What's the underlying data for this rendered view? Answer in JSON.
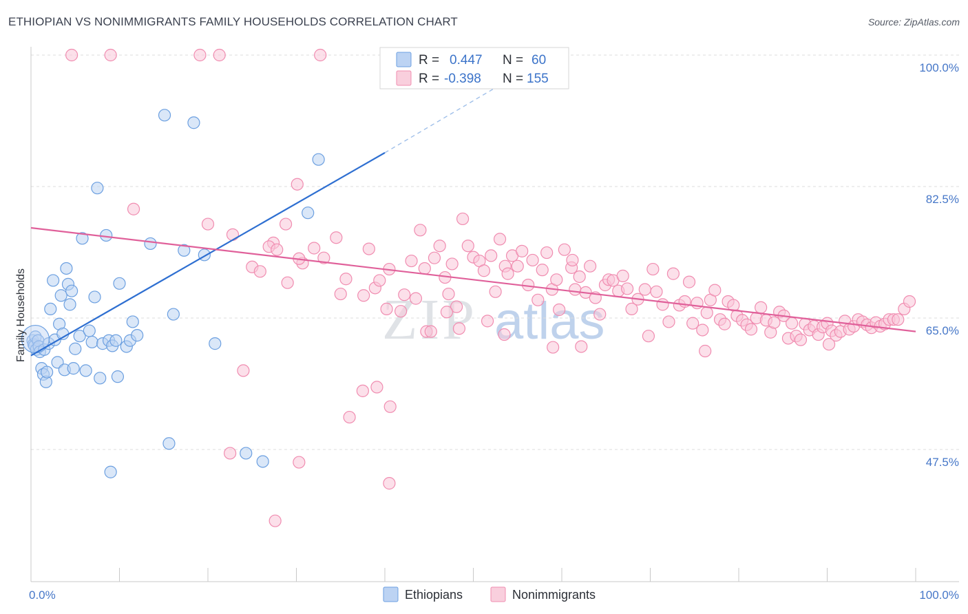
{
  "title": "ETHIOPIAN VS NONIMMIGRANTS FAMILY HOUSEHOLDS CORRELATION CHART",
  "source": "Source: ZipAtlas.com",
  "watermark": {
    "zip": "ZIP",
    "atlas": "atlas"
  },
  "colors": {
    "blue": "#6b9fe0",
    "blue_line": "#2e6fd1",
    "pink": "#f08cb0",
    "pink_line": "#e0609a",
    "tick_label": "#4677c8",
    "grid": "#dddddd"
  },
  "legend": {
    "rows": [
      {
        "r_label": "R =",
        "r_value": "0.447",
        "n_label": "N =",
        "n_value": "60"
      },
      {
        "r_label": "R =",
        "r_value": "-0.398",
        "n_label": "N =",
        "n_value": "155"
      }
    ]
  },
  "bottom_legend": [
    "Ethiopians",
    "Nonimmigrants"
  ],
  "chart_data": {
    "type": "scatter",
    "title": "ETHIOPIAN VS NONIMMIGRANTS FAMILY HOUSEHOLDS CORRELATION CHART",
    "xlabel": "",
    "ylabel": "Family Households",
    "xlim": [
      0,
      100
    ],
    "ylim": [
      29.5,
      101.5
    ],
    "x_tick_labels": [
      "0.0%",
      "100.0%"
    ],
    "y_ticks": [
      47.5,
      65.0,
      82.5,
      100.0
    ],
    "y_tick_labels": [
      "47.5%",
      "65.0%",
      "82.5%",
      "100.0%"
    ],
    "grid": true,
    "series": [
      {
        "name": "Ethiopians",
        "R": 0.447,
        "N": 60,
        "trend": {
          "x0": 0,
          "y0": 60.0,
          "x1": 40,
          "y1": 87.0,
          "dashed_to_x": 53,
          "dashed_to_y": 96.0
        },
        "points": [
          [
            0.2,
            62.0
          ],
          [
            0.3,
            61.5
          ],
          [
            0.4,
            61.3
          ],
          [
            0.5,
            62.5
          ],
          [
            0.6,
            60.8
          ],
          [
            0.8,
            62.0
          ],
          [
            0.9,
            61.2
          ],
          [
            1.0,
            60.5
          ],
          [
            1.2,
            58.3
          ],
          [
            1.4,
            57.5
          ],
          [
            1.5,
            60.8
          ],
          [
            1.7,
            56.5
          ],
          [
            1.8,
            57.8
          ],
          [
            2.0,
            61.6
          ],
          [
            2.2,
            66.2
          ],
          [
            2.5,
            70.0
          ],
          [
            2.7,
            62.1
          ],
          [
            3.0,
            59.1
          ],
          [
            3.2,
            64.2
          ],
          [
            3.4,
            68.0
          ],
          [
            3.6,
            62.9
          ],
          [
            3.8,
            58.1
          ],
          [
            4.0,
            71.6
          ],
          [
            4.2,
            69.5
          ],
          [
            4.4,
            66.8
          ],
          [
            4.6,
            68.6
          ],
          [
            4.8,
            58.3
          ],
          [
            5.0,
            60.9
          ],
          [
            5.5,
            62.6
          ],
          [
            5.8,
            75.6
          ],
          [
            6.2,
            58.0
          ],
          [
            6.6,
            63.3
          ],
          [
            6.9,
            61.8
          ],
          [
            7.2,
            67.8
          ],
          [
            7.5,
            82.3
          ],
          [
            7.8,
            57.0
          ],
          [
            8.1,
            61.6
          ],
          [
            8.5,
            76.0
          ],
          [
            8.8,
            62.0
          ],
          [
            9.2,
            61.3
          ],
          [
            9.6,
            62.0
          ],
          [
            9.8,
            57.2
          ],
          [
            10.0,
            69.6
          ],
          [
            10.8,
            61.2
          ],
          [
            11.2,
            62.0
          ],
          [
            11.5,
            64.5
          ],
          [
            12.0,
            62.7
          ],
          [
            13.5,
            74.9
          ],
          [
            15.1,
            92.0
          ],
          [
            15.6,
            48.3
          ],
          [
            16.1,
            65.5
          ],
          [
            17.3,
            74.0
          ],
          [
            18.4,
            91.0
          ],
          [
            19.6,
            73.4
          ],
          [
            20.8,
            61.6
          ],
          [
            24.3,
            47.0
          ],
          [
            26.2,
            45.9
          ],
          [
            31.3,
            79.0
          ],
          [
            32.5,
            86.1
          ],
          [
            9.0,
            44.5
          ]
        ]
      },
      {
        "name": "Nonimmigrants",
        "R": -0.398,
        "N": 155,
        "trend": {
          "x0": 0,
          "y0": 77.0,
          "x1": 100,
          "y1": 63.2
        },
        "points": [
          [
            4.6,
            100.0
          ],
          [
            9.0,
            100.0
          ],
          [
            19.1,
            100.0
          ],
          [
            21.3,
            100.0
          ],
          [
            32.7,
            100.0
          ],
          [
            11.6,
            79.5
          ],
          [
            30.1,
            82.8
          ],
          [
            28.8,
            77.5
          ],
          [
            20.0,
            77.5
          ],
          [
            22.8,
            76.1
          ],
          [
            27.4,
            75.0
          ],
          [
            26.9,
            74.5
          ],
          [
            27.8,
            74.1
          ],
          [
            29.0,
            69.7
          ],
          [
            30.7,
            72.3
          ],
          [
            25.0,
            71.8
          ],
          [
            25.9,
            71.2
          ],
          [
            30.3,
            72.9
          ],
          [
            32.0,
            74.3
          ],
          [
            33.1,
            73.0
          ],
          [
            34.5,
            75.7
          ],
          [
            35.0,
            68.2
          ],
          [
            35.6,
            70.2
          ],
          [
            38.2,
            74.2
          ],
          [
            38.9,
            69.0
          ],
          [
            39.4,
            70.0
          ],
          [
            40.5,
            71.5
          ],
          [
            41.8,
            65.9
          ],
          [
            42.2,
            68.1
          ],
          [
            43.0,
            72.6
          ],
          [
            44.0,
            76.7
          ],
          [
            44.5,
            71.6
          ],
          [
            44.7,
            63.2
          ],
          [
            45.6,
            73.0
          ],
          [
            46.2,
            74.6
          ],
          [
            46.8,
            70.4
          ],
          [
            47.2,
            68.2
          ],
          [
            47.6,
            72.2
          ],
          [
            48.1,
            66.5
          ],
          [
            48.4,
            63.6
          ],
          [
            48.8,
            78.2
          ],
          [
            49.4,
            74.6
          ],
          [
            50.0,
            73.1
          ],
          [
            50.7,
            72.6
          ],
          [
            51.2,
            71.3
          ],
          [
            51.6,
            64.6
          ],
          [
            52.0,
            73.3
          ],
          [
            52.5,
            68.5
          ],
          [
            53.0,
            75.5
          ],
          [
            53.6,
            71.9
          ],
          [
            53.9,
            70.9
          ],
          [
            54.4,
            73.3
          ],
          [
            55.0,
            71.9
          ],
          [
            55.5,
            73.9
          ],
          [
            56.2,
            69.4
          ],
          [
            56.7,
            72.7
          ],
          [
            57.3,
            67.4
          ],
          [
            57.8,
            71.4
          ],
          [
            58.3,
            73.7
          ],
          [
            58.9,
            68.8
          ],
          [
            59.4,
            70.1
          ],
          [
            59.7,
            66.1
          ],
          [
            60.3,
            74.1
          ],
          [
            61.1,
            71.7
          ],
          [
            61.5,
            68.8
          ],
          [
            62.0,
            70.5
          ],
          [
            62.7,
            68.4
          ],
          [
            63.2,
            71.9
          ],
          [
            63.8,
            67.7
          ],
          [
            64.3,
            65.5
          ],
          [
            64.9,
            69.4
          ],
          [
            65.3,
            70.1
          ],
          [
            65.8,
            70.0
          ],
          [
            66.4,
            68.6
          ],
          [
            66.9,
            70.6
          ],
          [
            67.4,
            68.9
          ],
          [
            67.9,
            66.2
          ],
          [
            68.6,
            67.5
          ],
          [
            69.4,
            68.8
          ],
          [
            69.8,
            62.6
          ],
          [
            70.3,
            71.5
          ],
          [
            70.7,
            68.5
          ],
          [
            71.4,
            66.8
          ],
          [
            72.1,
            64.5
          ],
          [
            72.6,
            70.9
          ],
          [
            73.3,
            66.7
          ],
          [
            73.9,
            67.2
          ],
          [
            74.4,
            69.8
          ],
          [
            74.8,
            64.3
          ],
          [
            75.3,
            67.0
          ],
          [
            75.9,
            63.4
          ],
          [
            76.4,
            65.7
          ],
          [
            76.8,
            67.4
          ],
          [
            77.3,
            68.7
          ],
          [
            77.9,
            64.8
          ],
          [
            78.4,
            64.2
          ],
          [
            78.8,
            67.2
          ],
          [
            79.4,
            66.7
          ],
          [
            79.8,
            65.3
          ],
          [
            80.4,
            64.7
          ],
          [
            80.9,
            64.1
          ],
          [
            81.4,
            63.5
          ],
          [
            82.0,
            65.0
          ],
          [
            82.5,
            66.4
          ],
          [
            83.1,
            64.7
          ],
          [
            83.6,
            63.1
          ],
          [
            84.0,
            64.4
          ],
          [
            84.6,
            65.8
          ],
          [
            85.1,
            65.3
          ],
          [
            85.6,
            62.3
          ],
          [
            86.0,
            64.3
          ],
          [
            86.5,
            62.6
          ],
          [
            87.0,
            62.1
          ],
          [
            87.5,
            64.2
          ],
          [
            88.0,
            63.4
          ],
          [
            88.5,
            63.9
          ],
          [
            89.0,
            62.8
          ],
          [
            89.5,
            63.8
          ],
          [
            90.0,
            64.3
          ],
          [
            90.5,
            63.3
          ],
          [
            91.0,
            62.7
          ],
          [
            91.5,
            63.2
          ],
          [
            92.0,
            64.6
          ],
          [
            92.5,
            63.5
          ],
          [
            93.0,
            63.9
          ],
          [
            93.5,
            64.8
          ],
          [
            94.0,
            64.5
          ],
          [
            94.5,
            64.1
          ],
          [
            95.0,
            63.7
          ],
          [
            95.5,
            64.4
          ],
          [
            96.0,
            63.9
          ],
          [
            96.5,
            64.2
          ],
          [
            97.0,
            64.8
          ],
          [
            97.5,
            64.8
          ],
          [
            98.0,
            64.8
          ],
          [
            98.7,
            66.2
          ],
          [
            99.3,
            67.2
          ],
          [
            90.2,
            61.5
          ],
          [
            62.2,
            61.2
          ],
          [
            24.0,
            58.0
          ],
          [
            36.0,
            51.8
          ],
          [
            37.5,
            55.3
          ],
          [
            39.1,
            55.8
          ],
          [
            40.6,
            53.2
          ],
          [
            40.2,
            66.2
          ],
          [
            45.2,
            63.2
          ],
          [
            47.0,
            65.8
          ],
          [
            59.0,
            61.1
          ],
          [
            22.5,
            47.0
          ],
          [
            30.3,
            45.8
          ],
          [
            40.5,
            43.0
          ],
          [
            27.6,
            38.0
          ],
          [
            37.6,
            68.0
          ],
          [
            61.2,
            72.7
          ],
          [
            76.2,
            60.6
          ],
          [
            43.5,
            67.6
          ],
          [
            53.5,
            62.8
          ]
        ]
      }
    ]
  },
  "x_axis_minor_ticks_percent": [
    10,
    20,
    30,
    40,
    50,
    60,
    70,
    80,
    90
  ]
}
